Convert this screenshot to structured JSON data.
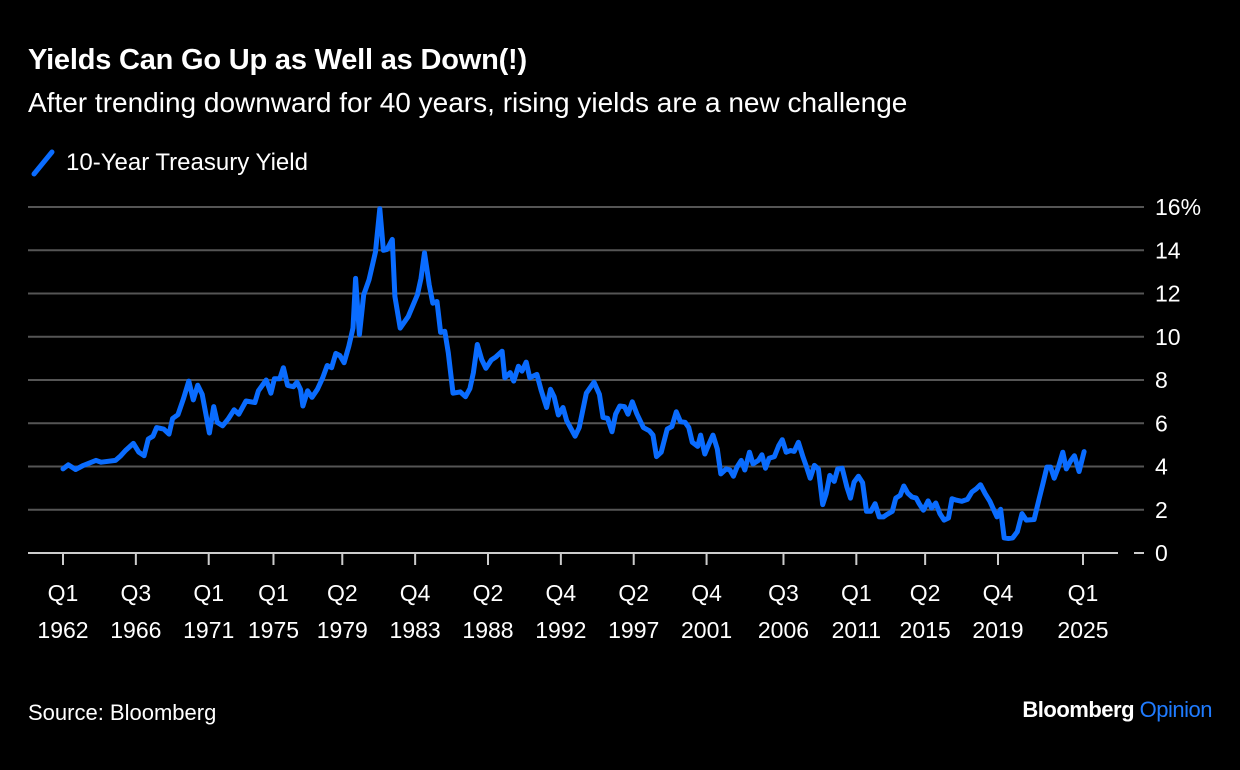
{
  "header": {
    "title": "Yields Can Go Up as Well as Down(!)",
    "subtitle": "After trending downward for 40 years, rising yields are a new challenge"
  },
  "footer": {
    "source": "Source: Bloomberg",
    "logo_brand": "Bloomberg",
    "logo_product": "Opinion"
  },
  "colors": {
    "series": "#0a6cff",
    "grid": "#555555",
    "axis": "#cccccc",
    "background": "#000000"
  },
  "chart_data": {
    "type": "line",
    "title": "Yields Can Go Up as Well as Down(!)",
    "subtitle": "After trending downward for 40 years, rising yields are a new challenge",
    "xlabel": "",
    "ylabel": "",
    "ylim": [
      0,
      16
    ],
    "yticks": [
      0,
      2,
      4,
      6,
      8,
      10,
      12,
      14,
      16
    ],
    "ytick_labels": [
      "0",
      "2",
      "4",
      "6",
      "8",
      "10",
      "12",
      "14",
      "16%"
    ],
    "xticks": [
      {
        "q": "Q1",
        "year": "1962",
        "pos": 1962.0
      },
      {
        "q": "Q3",
        "year": "1966",
        "pos": 1966.5
      },
      {
        "q": "Q1",
        "year": "1971",
        "pos": 1971.0
      },
      {
        "q": "Q1",
        "year": "1975",
        "pos": 1975.0
      },
      {
        "q": "Q2",
        "year": "1979",
        "pos": 1979.25
      },
      {
        "q": "Q4",
        "year": "1983",
        "pos": 1983.75
      },
      {
        "q": "Q2",
        "year": "1988",
        "pos": 1988.25
      },
      {
        "q": "Q4",
        "year": "1992",
        "pos": 1992.75
      },
      {
        "q": "Q2",
        "year": "1997",
        "pos": 1997.25
      },
      {
        "q": "Q4",
        "year": "2001",
        "pos": 2001.75
      },
      {
        "q": "Q3",
        "year": "2006",
        "pos": 2006.5
      },
      {
        "q": "Q1",
        "year": "2011",
        "pos": 2011.0
      },
      {
        "q": "Q2",
        "year": "2015",
        "pos": 2015.25
      },
      {
        "q": "Q4",
        "year": "2019",
        "pos": 2019.75
      },
      {
        "q": "Q1",
        "year": "2025",
        "pos": 2025.0
      }
    ],
    "grid": true,
    "legend": "top-left",
    "series": [
      {
        "name": "10-Year Treasury Yield",
        "points": [
          [
            1962.0,
            3.89
          ],
          [
            1962.33,
            4.08
          ],
          [
            1962.78,
            3.86
          ],
          [
            1963.26,
            4.05
          ],
          [
            1964.03,
            4.28
          ],
          [
            1964.36,
            4.2
          ],
          [
            1965.24,
            4.28
          ],
          [
            1965.57,
            4.5
          ],
          [
            1965.86,
            4.74
          ],
          [
            1966.35,
            5.07
          ],
          [
            1966.68,
            4.66
          ],
          [
            1967.01,
            4.5
          ],
          [
            1967.27,
            5.27
          ],
          [
            1967.56,
            5.4
          ],
          [
            1967.78,
            5.8
          ],
          [
            1968.22,
            5.73
          ],
          [
            1968.55,
            5.5
          ],
          [
            1968.77,
            6.22
          ],
          [
            1969.1,
            6.4
          ],
          [
            1969.44,
            7.14
          ],
          [
            1969.77,
            7.95
          ],
          [
            1970.05,
            7.08
          ],
          [
            1970.32,
            7.76
          ],
          [
            1970.6,
            7.34
          ],
          [
            1971.04,
            5.55
          ],
          [
            1971.31,
            6.77
          ],
          [
            1971.53,
            6.04
          ],
          [
            1971.86,
            5.88
          ],
          [
            1972.2,
            6.19
          ],
          [
            1972.57,
            6.62
          ],
          [
            1972.86,
            6.42
          ],
          [
            1973.3,
            7.03
          ],
          [
            1973.85,
            6.96
          ],
          [
            1974.07,
            7.5
          ],
          [
            1974.55,
            8.0
          ],
          [
            1974.84,
            7.39
          ],
          [
            1975.06,
            8.06
          ],
          [
            1975.39,
            8.06
          ],
          [
            1975.61,
            8.57
          ],
          [
            1975.87,
            7.75
          ],
          [
            1976.23,
            7.69
          ],
          [
            1976.45,
            7.9
          ],
          [
            1976.67,
            7.57
          ],
          [
            1976.82,
            6.8
          ],
          [
            1977.11,
            7.5
          ],
          [
            1977.38,
            7.2
          ],
          [
            1977.71,
            7.57
          ],
          [
            1978.04,
            8.1
          ],
          [
            1978.32,
            8.67
          ],
          [
            1978.59,
            8.57
          ],
          [
            1978.85,
            9.23
          ],
          [
            1979.1,
            9.13
          ],
          [
            1979.36,
            8.8
          ],
          [
            1979.65,
            9.56
          ],
          [
            1979.91,
            10.4
          ],
          [
            1980.07,
            12.7
          ],
          [
            1980.31,
            10.1
          ],
          [
            1980.57,
            11.94
          ],
          [
            1980.9,
            12.63
          ],
          [
            1981.3,
            13.93
          ],
          [
            1981.57,
            15.92
          ],
          [
            1981.79,
            14.0
          ],
          [
            1982.01,
            14.04
          ],
          [
            1982.34,
            14.5
          ],
          [
            1982.5,
            11.86
          ],
          [
            1982.83,
            10.4
          ],
          [
            1983.33,
            10.94
          ],
          [
            1983.89,
            11.94
          ],
          [
            1984.11,
            12.7
          ],
          [
            1984.33,
            13.88
          ],
          [
            1984.62,
            12.4
          ],
          [
            1984.84,
            11.55
          ],
          [
            1985.1,
            11.63
          ],
          [
            1985.32,
            10.2
          ],
          [
            1985.58,
            10.25
          ],
          [
            1985.8,
            9.26
          ],
          [
            1986.09,
            7.39
          ],
          [
            1986.53,
            7.45
          ],
          [
            1986.86,
            7.23
          ],
          [
            1987.13,
            7.6
          ],
          [
            1987.35,
            8.34
          ],
          [
            1987.59,
            9.64
          ],
          [
            1987.86,
            8.95
          ],
          [
            1988.12,
            8.54
          ],
          [
            1988.45,
            8.92
          ],
          [
            1988.74,
            9.07
          ],
          [
            1989.12,
            9.33
          ],
          [
            1989.29,
            8.1
          ],
          [
            1989.62,
            8.34
          ],
          [
            1989.84,
            7.95
          ],
          [
            1990.13,
            8.64
          ],
          [
            1990.35,
            8.41
          ],
          [
            1990.61,
            8.83
          ],
          [
            1990.83,
            8.1
          ],
          [
            1991.27,
            8.26
          ],
          [
            1991.54,
            7.5
          ],
          [
            1991.87,
            6.73
          ],
          [
            1992.11,
            7.57
          ],
          [
            1992.33,
            7.23
          ],
          [
            1992.6,
            6.38
          ],
          [
            1992.88,
            6.73
          ],
          [
            1993.11,
            6.12
          ],
          [
            1993.37,
            5.76
          ],
          [
            1993.63,
            5.4
          ],
          [
            1993.88,
            5.8
          ],
          [
            1994.32,
            7.39
          ],
          [
            1994.8,
            7.9
          ],
          [
            1995.13,
            7.34
          ],
          [
            1995.35,
            6.27
          ],
          [
            1995.64,
            6.23
          ],
          [
            1995.91,
            5.61
          ],
          [
            1996.13,
            6.42
          ],
          [
            1996.39,
            6.8
          ],
          [
            1996.68,
            6.77
          ],
          [
            1996.9,
            6.42
          ],
          [
            1997.16,
            6.99
          ],
          [
            1997.45,
            6.42
          ],
          [
            1997.85,
            5.8
          ],
          [
            1998.22,
            5.65
          ],
          [
            1998.44,
            5.45
          ],
          [
            1998.66,
            4.46
          ],
          [
            1998.95,
            4.66
          ],
          [
            1999.32,
            5.73
          ],
          [
            1999.61,
            5.85
          ],
          [
            1999.88,
            6.53
          ],
          [
            2000.14,
            6.07
          ],
          [
            2000.43,
            6.04
          ],
          [
            2000.65,
            5.8
          ],
          [
            2000.87,
            5.12
          ],
          [
            2001.2,
            4.93
          ],
          [
            2001.38,
            5.45
          ],
          [
            2001.64,
            4.58
          ],
          [
            2001.91,
            5.07
          ],
          [
            2002.15,
            5.45
          ],
          [
            2002.41,
            4.81
          ],
          [
            2002.63,
            3.66
          ],
          [
            2002.96,
            3.89
          ],
          [
            2003.19,
            3.84
          ],
          [
            2003.41,
            3.55
          ],
          [
            2003.63,
            3.97
          ],
          [
            2003.89,
            4.28
          ],
          [
            2004.11,
            3.84
          ],
          [
            2004.4,
            4.66
          ],
          [
            2004.62,
            4.12
          ],
          [
            2004.95,
            4.28
          ],
          [
            2005.17,
            4.54
          ],
          [
            2005.39,
            3.92
          ],
          [
            2005.61,
            4.38
          ],
          [
            2005.94,
            4.46
          ],
          [
            2006.21,
            4.97
          ],
          [
            2006.43,
            5.24
          ],
          [
            2006.67,
            4.66
          ],
          [
            2006.94,
            4.74
          ],
          [
            2007.16,
            4.7
          ],
          [
            2007.42,
            5.12
          ],
          [
            2007.71,
            4.43
          ],
          [
            2007.93,
            3.97
          ],
          [
            2008.15,
            3.46
          ],
          [
            2008.41,
            4.05
          ],
          [
            2008.66,
            3.89
          ],
          [
            2008.92,
            2.24
          ],
          [
            2009.14,
            2.74
          ],
          [
            2009.36,
            3.59
          ],
          [
            2009.63,
            3.31
          ],
          [
            2009.85,
            3.89
          ],
          [
            2010.13,
            3.92
          ],
          [
            2010.42,
            3.05
          ],
          [
            2010.64,
            2.54
          ],
          [
            2010.86,
            3.28
          ],
          [
            2011.13,
            3.55
          ],
          [
            2011.39,
            3.25
          ],
          [
            2011.63,
            1.93
          ],
          [
            2011.9,
            1.93
          ],
          [
            2012.16,
            2.28
          ],
          [
            2012.41,
            1.67
          ],
          [
            2012.67,
            1.67
          ],
          [
            2012.89,
            1.78
          ],
          [
            2013.22,
            1.93
          ],
          [
            2013.44,
            2.54
          ],
          [
            2013.71,
            2.67
          ],
          [
            2013.93,
            3.1
          ],
          [
            2014.17,
            2.77
          ],
          [
            2014.44,
            2.59
          ],
          [
            2014.7,
            2.54
          ],
          [
            2014.88,
            2.28
          ],
          [
            2015.14,
            1.98
          ],
          [
            2015.43,
            2.41
          ],
          [
            2015.65,
            2.08
          ],
          [
            2015.91,
            2.31
          ],
          [
            2016.16,
            1.82
          ],
          [
            2016.42,
            1.52
          ],
          [
            2016.69,
            1.62
          ],
          [
            2016.91,
            2.51
          ],
          [
            2017.19,
            2.44
          ],
          [
            2017.52,
            2.39
          ],
          [
            2017.86,
            2.48
          ],
          [
            2018.14,
            2.82
          ],
          [
            2018.41,
            2.97
          ],
          [
            2018.67,
            3.16
          ],
          [
            2018.96,
            2.74
          ],
          [
            2019.25,
            2.39
          ],
          [
            2019.47,
            2.02
          ],
          [
            2019.69,
            1.67
          ],
          [
            2019.91,
            2.02
          ],
          [
            2020.13,
            0.7
          ],
          [
            2020.39,
            0.67
          ],
          [
            2020.66,
            0.7
          ],
          [
            2020.94,
            0.98
          ],
          [
            2021.23,
            1.82
          ],
          [
            2021.5,
            1.52
          ],
          [
            2021.98,
            1.55
          ],
          [
            2022.27,
            2.44
          ],
          [
            2022.55,
            3.28
          ],
          [
            2022.77,
            3.97
          ],
          [
            2023.0,
            3.97
          ],
          [
            2023.22,
            3.46
          ],
          [
            2023.48,
            3.97
          ],
          [
            2023.75,
            4.66
          ],
          [
            2023.97,
            3.89
          ],
          [
            2024.25,
            4.28
          ],
          [
            2024.47,
            4.5
          ],
          [
            2024.76,
            3.77
          ],
          [
            2025.07,
            4.69
          ]
        ]
      }
    ]
  }
}
